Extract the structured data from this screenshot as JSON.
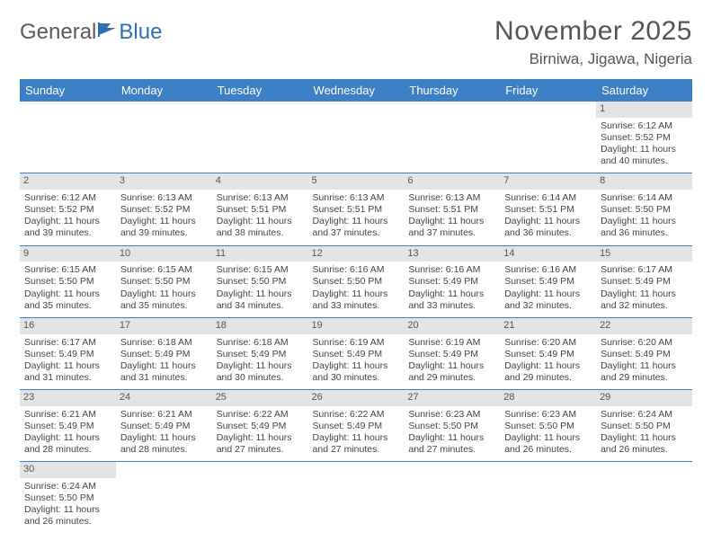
{
  "logo": {
    "part1": "General",
    "part2": "Blue"
  },
  "header": {
    "title": "November 2025",
    "location": "Birniwa, Jigawa, Nigeria"
  },
  "colors": {
    "header_bg": "#3b7fc4",
    "header_text": "#ffffff",
    "daynum_bg": "#e4e4e4",
    "text": "#444444",
    "brand_gray": "#5a5a5a",
    "brand_blue": "#2f6fb0",
    "row_divider": "#3b7fc4"
  },
  "weekdays": [
    "Sunday",
    "Monday",
    "Tuesday",
    "Wednesday",
    "Thursday",
    "Friday",
    "Saturday"
  ],
  "days": [
    {
      "n": 1,
      "sunrise": "6:12 AM",
      "sunset": "5:52 PM",
      "daylight": "11 hours and 40 minutes."
    },
    {
      "n": 2,
      "sunrise": "6:12 AM",
      "sunset": "5:52 PM",
      "daylight": "11 hours and 39 minutes."
    },
    {
      "n": 3,
      "sunrise": "6:13 AM",
      "sunset": "5:52 PM",
      "daylight": "11 hours and 39 minutes."
    },
    {
      "n": 4,
      "sunrise": "6:13 AM",
      "sunset": "5:51 PM",
      "daylight": "11 hours and 38 minutes."
    },
    {
      "n": 5,
      "sunrise": "6:13 AM",
      "sunset": "5:51 PM",
      "daylight": "11 hours and 37 minutes."
    },
    {
      "n": 6,
      "sunrise": "6:13 AM",
      "sunset": "5:51 PM",
      "daylight": "11 hours and 37 minutes."
    },
    {
      "n": 7,
      "sunrise": "6:14 AM",
      "sunset": "5:51 PM",
      "daylight": "11 hours and 36 minutes."
    },
    {
      "n": 8,
      "sunrise": "6:14 AM",
      "sunset": "5:50 PM",
      "daylight": "11 hours and 36 minutes."
    },
    {
      "n": 9,
      "sunrise": "6:15 AM",
      "sunset": "5:50 PM",
      "daylight": "11 hours and 35 minutes."
    },
    {
      "n": 10,
      "sunrise": "6:15 AM",
      "sunset": "5:50 PM",
      "daylight": "11 hours and 35 minutes."
    },
    {
      "n": 11,
      "sunrise": "6:15 AM",
      "sunset": "5:50 PM",
      "daylight": "11 hours and 34 minutes."
    },
    {
      "n": 12,
      "sunrise": "6:16 AM",
      "sunset": "5:50 PM",
      "daylight": "11 hours and 33 minutes."
    },
    {
      "n": 13,
      "sunrise": "6:16 AM",
      "sunset": "5:49 PM",
      "daylight": "11 hours and 33 minutes."
    },
    {
      "n": 14,
      "sunrise": "6:16 AM",
      "sunset": "5:49 PM",
      "daylight": "11 hours and 32 minutes."
    },
    {
      "n": 15,
      "sunrise": "6:17 AM",
      "sunset": "5:49 PM",
      "daylight": "11 hours and 32 minutes."
    },
    {
      "n": 16,
      "sunrise": "6:17 AM",
      "sunset": "5:49 PM",
      "daylight": "11 hours and 31 minutes."
    },
    {
      "n": 17,
      "sunrise": "6:18 AM",
      "sunset": "5:49 PM",
      "daylight": "11 hours and 31 minutes."
    },
    {
      "n": 18,
      "sunrise": "6:18 AM",
      "sunset": "5:49 PM",
      "daylight": "11 hours and 30 minutes."
    },
    {
      "n": 19,
      "sunrise": "6:19 AM",
      "sunset": "5:49 PM",
      "daylight": "11 hours and 30 minutes."
    },
    {
      "n": 20,
      "sunrise": "6:19 AM",
      "sunset": "5:49 PM",
      "daylight": "11 hours and 29 minutes."
    },
    {
      "n": 21,
      "sunrise": "6:20 AM",
      "sunset": "5:49 PM",
      "daylight": "11 hours and 29 minutes."
    },
    {
      "n": 22,
      "sunrise": "6:20 AM",
      "sunset": "5:49 PM",
      "daylight": "11 hours and 29 minutes."
    },
    {
      "n": 23,
      "sunrise": "6:21 AM",
      "sunset": "5:49 PM",
      "daylight": "11 hours and 28 minutes."
    },
    {
      "n": 24,
      "sunrise": "6:21 AM",
      "sunset": "5:49 PM",
      "daylight": "11 hours and 28 minutes."
    },
    {
      "n": 25,
      "sunrise": "6:22 AM",
      "sunset": "5:49 PM",
      "daylight": "11 hours and 27 minutes."
    },
    {
      "n": 26,
      "sunrise": "6:22 AM",
      "sunset": "5:49 PM",
      "daylight": "11 hours and 27 minutes."
    },
    {
      "n": 27,
      "sunrise": "6:23 AM",
      "sunset": "5:50 PM",
      "daylight": "11 hours and 27 minutes."
    },
    {
      "n": 28,
      "sunrise": "6:23 AM",
      "sunset": "5:50 PM",
      "daylight": "11 hours and 26 minutes."
    },
    {
      "n": 29,
      "sunrise": "6:24 AM",
      "sunset": "5:50 PM",
      "daylight": "11 hours and 26 minutes."
    },
    {
      "n": 30,
      "sunrise": "6:24 AM",
      "sunset": "5:50 PM",
      "daylight": "11 hours and 26 minutes."
    }
  ],
  "layout": {
    "first_day_column": 6,
    "labels": {
      "sunrise": "Sunrise:",
      "sunset": "Sunset:",
      "daylight": "Daylight:"
    }
  }
}
